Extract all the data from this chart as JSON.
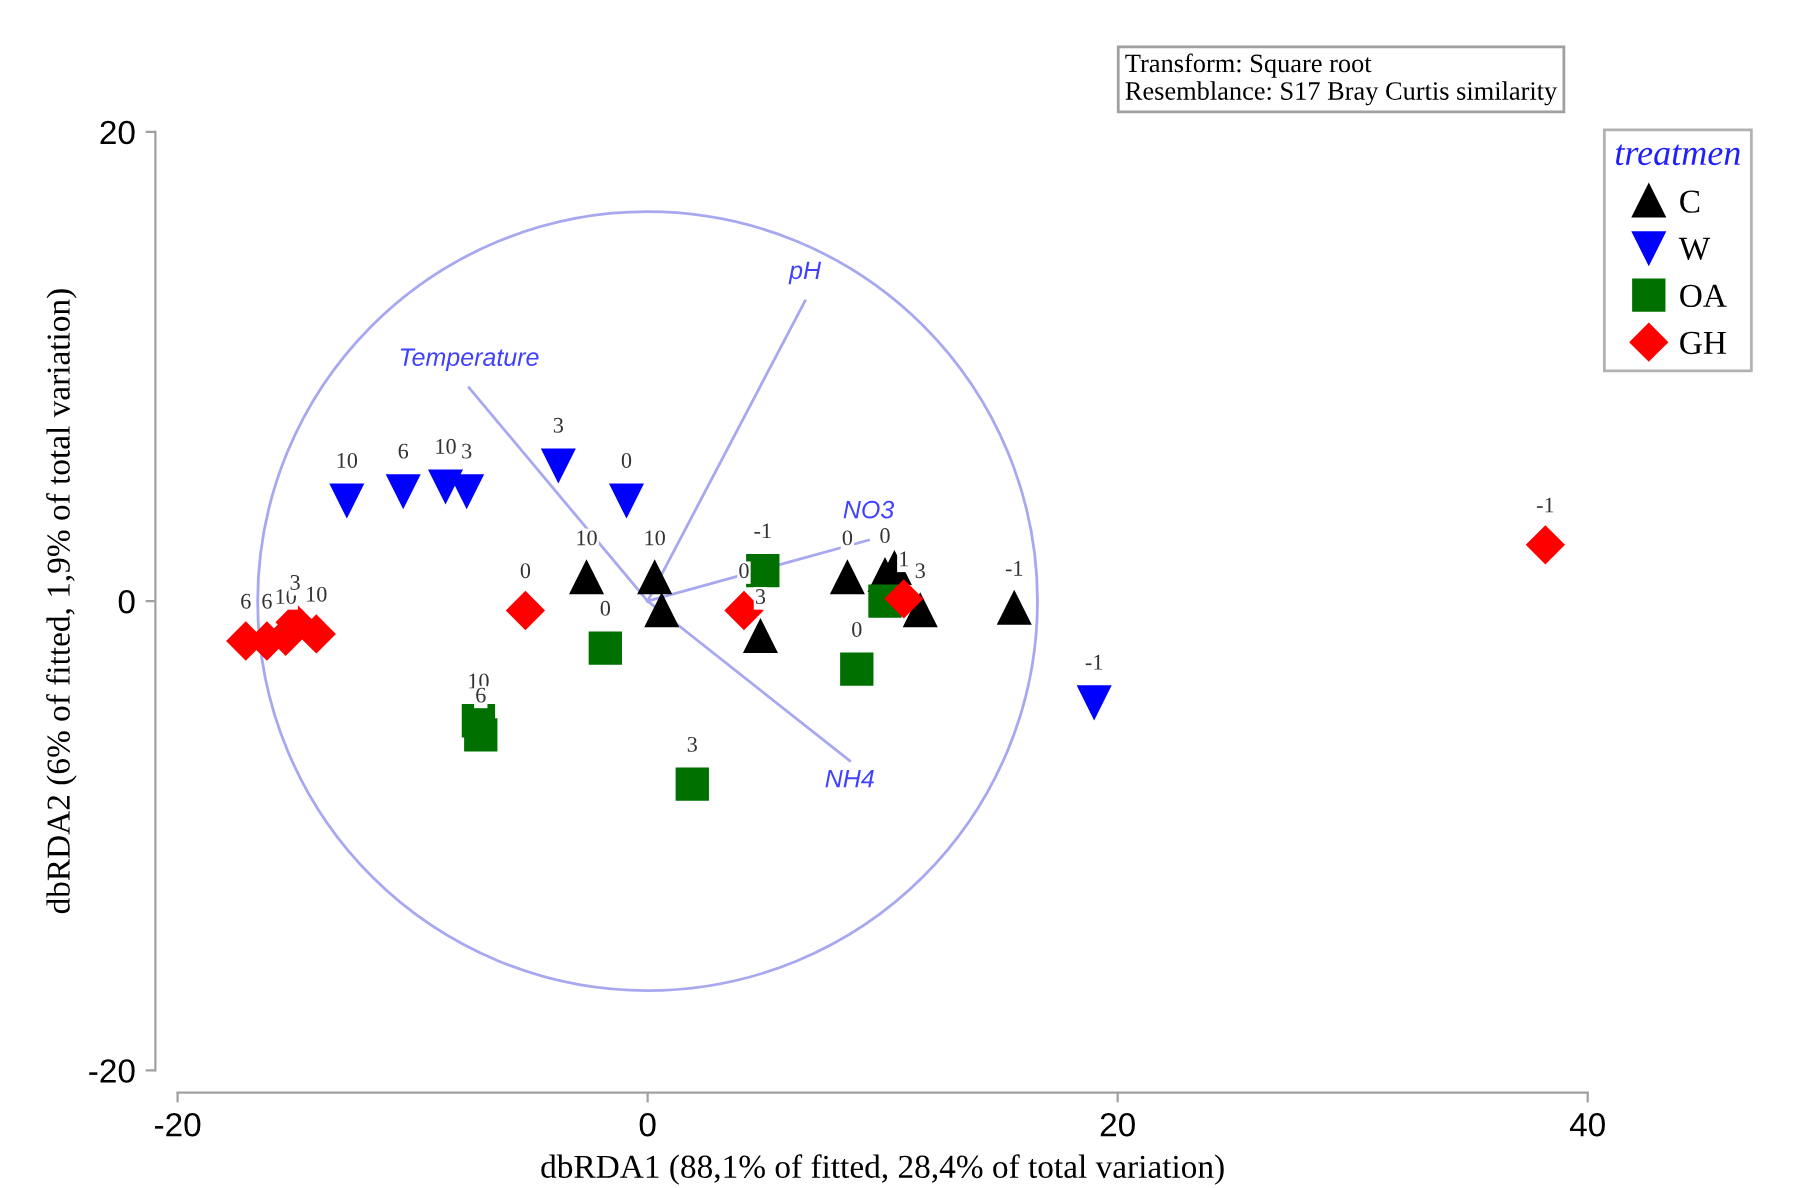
{
  "chart_data": {
    "type": "scatter",
    "xlabel": "dbRDA1 (88,1% of fitted, 28,4% of total variation)",
    "ylabel": "dbRDA2 (6% of fitted, 1,9% of total variation)",
    "legend_title": "treatmen",
    "legend": "top right",
    "grid": false,
    "annotations": [
      "Transform: Square root",
      "Resemblance: S17 Bray Curtis similarity",
      {
        "text": "10",
        "x": -2.6,
        "y": 1.0
      },
      {
        "text": "10",
        "x": 0.3,
        "y": 1.0
      },
      {
        "text": "3",
        "x": 4.8,
        "y": -1.5
      },
      {
        "text": "0",
        "x": 8.5,
        "y": 1.0
      },
      {
        "text": "0",
        "x": 10.1,
        "y": 1.1
      },
      {
        "text": "3",
        "x": 11.6,
        "y": -0.4
      },
      {
        "text": "-1",
        "x": 15.6,
        "y": -0.3
      },
      {
        "text": "10",
        "x": -12.8,
        "y": 4.3
      },
      {
        "text": "6",
        "x": -10.4,
        "y": 4.7
      },
      {
        "text": "10",
        "x": -8.6,
        "y": 4.9
      },
      {
        "text": "3",
        "x": -7.7,
        "y": 4.7
      },
      {
        "text": "3",
        "x": -3.8,
        "y": 5.8
      },
      {
        "text": "0",
        "x": -0.9,
        "y": 4.3
      },
      {
        "text": "-1",
        "x": 19.0,
        "y": -4.3
      },
      {
        "text": "10",
        "x": -7.2,
        "y": -5.1
      },
      {
        "text": "6",
        "x": -7.1,
        "y": -5.7
      },
      {
        "text": "0",
        "x": -1.8,
        "y": -2.0
      },
      {
        "text": "3",
        "x": 1.9,
        "y": -7.8
      },
      {
        "text": "-1",
        "x": 4.9,
        "y": 1.3
      },
      {
        "text": "0",
        "x": 8.9,
        "y": -2.9
      },
      {
        "text": "6",
        "x": -17.1,
        "y": -1.7
      },
      {
        "text": "6",
        "x": -16.2,
        "y": -1.7
      },
      {
        "text": "10",
        "x": -15.4,
        "y": -1.5
      },
      {
        "text": "3",
        "x": -15.0,
        "y": -0.9
      },
      {
        "text": "10",
        "x": -14.1,
        "y": -1.4
      },
      {
        "text": "0",
        "x": -5.2,
        "y": -0.4
      },
      {
        "text": "0",
        "x": 4.1,
        "y": -0.4
      },
      {
        "text": "1",
        "x": 10.9,
        "y": 0.1
      },
      {
        "text": "-1",
        "x": 38.2,
        "y": 2.4
      }
    ],
    "xlim": [
      -20,
      40
    ],
    "xticks": [
      -20,
      0,
      20,
      40
    ],
    "ylim": [
      -20,
      20
    ],
    "yticks": [
      -20,
      0,
      20
    ],
    "series": [
      {
        "name": "C",
        "color": "#000000",
        "marker": "triangle",
        "x": [
          -2.6,
          0.3,
          0.6,
          4.8,
          8.5,
          10.1,
          10.5,
          11.6,
          15.6
        ],
        "values": [
          1.0,
          1.0,
          -0.4,
          -1.5,
          1.0,
          1.1,
          1.4,
          -0.4,
          -0.3
        ]
      },
      {
        "name": "W",
        "color": "#0000ff",
        "marker": "triangle_down",
        "x": [
          -12.8,
          -10.4,
          -8.6,
          -7.7,
          -3.8,
          -0.9,
          19.0
        ],
        "values": [
          4.3,
          4.7,
          4.9,
          4.7,
          5.8,
          4.3,
          -4.3
        ]
      },
      {
        "name": "OA",
        "color": "#007000",
        "marker": "square",
        "x": [
          -7.2,
          -7.1,
          -1.8,
          1.9,
          4.9,
          8.9,
          10.1
        ],
        "values": [
          -5.1,
          -5.7,
          -2.0,
          -7.8,
          1.3,
          -2.9,
          0.0
        ]
      },
      {
        "name": "GH",
        "color": "#ff0000",
        "marker": "diamond",
        "x": [
          -17.1,
          -16.2,
          -15.4,
          -15.0,
          -14.1,
          -5.2,
          4.1,
          10.9,
          38.2
        ],
        "values": [
          -1.7,
          -1.7,
          -1.5,
          -0.9,
          -1.4,
          -0.4,
          -0.4,
          0.1,
          2.4
        ]
      },
      {
        "type": "line",
        "name": "pH",
        "color": "#a8a8f0",
        "x": [
          0,
          6.7
        ],
        "values": [
          0,
          12.8
        ]
      },
      {
        "type": "line",
        "name": "Temperature",
        "color": "#a8a8f0",
        "x": [
          0,
          -7.6
        ],
        "values": [
          0,
          9.1
        ]
      },
      {
        "type": "line",
        "name": "NO3",
        "color": "#a8a8f0",
        "x": [
          0,
          9.4
        ],
        "values": [
          0,
          2.6
        ]
      },
      {
        "type": "line",
        "name": "NH4",
        "color": "#a8a8f0",
        "x": [
          0,
          8.6
        ],
        "values": [
          0,
          -6.8
        ]
      }
    ]
  }
}
